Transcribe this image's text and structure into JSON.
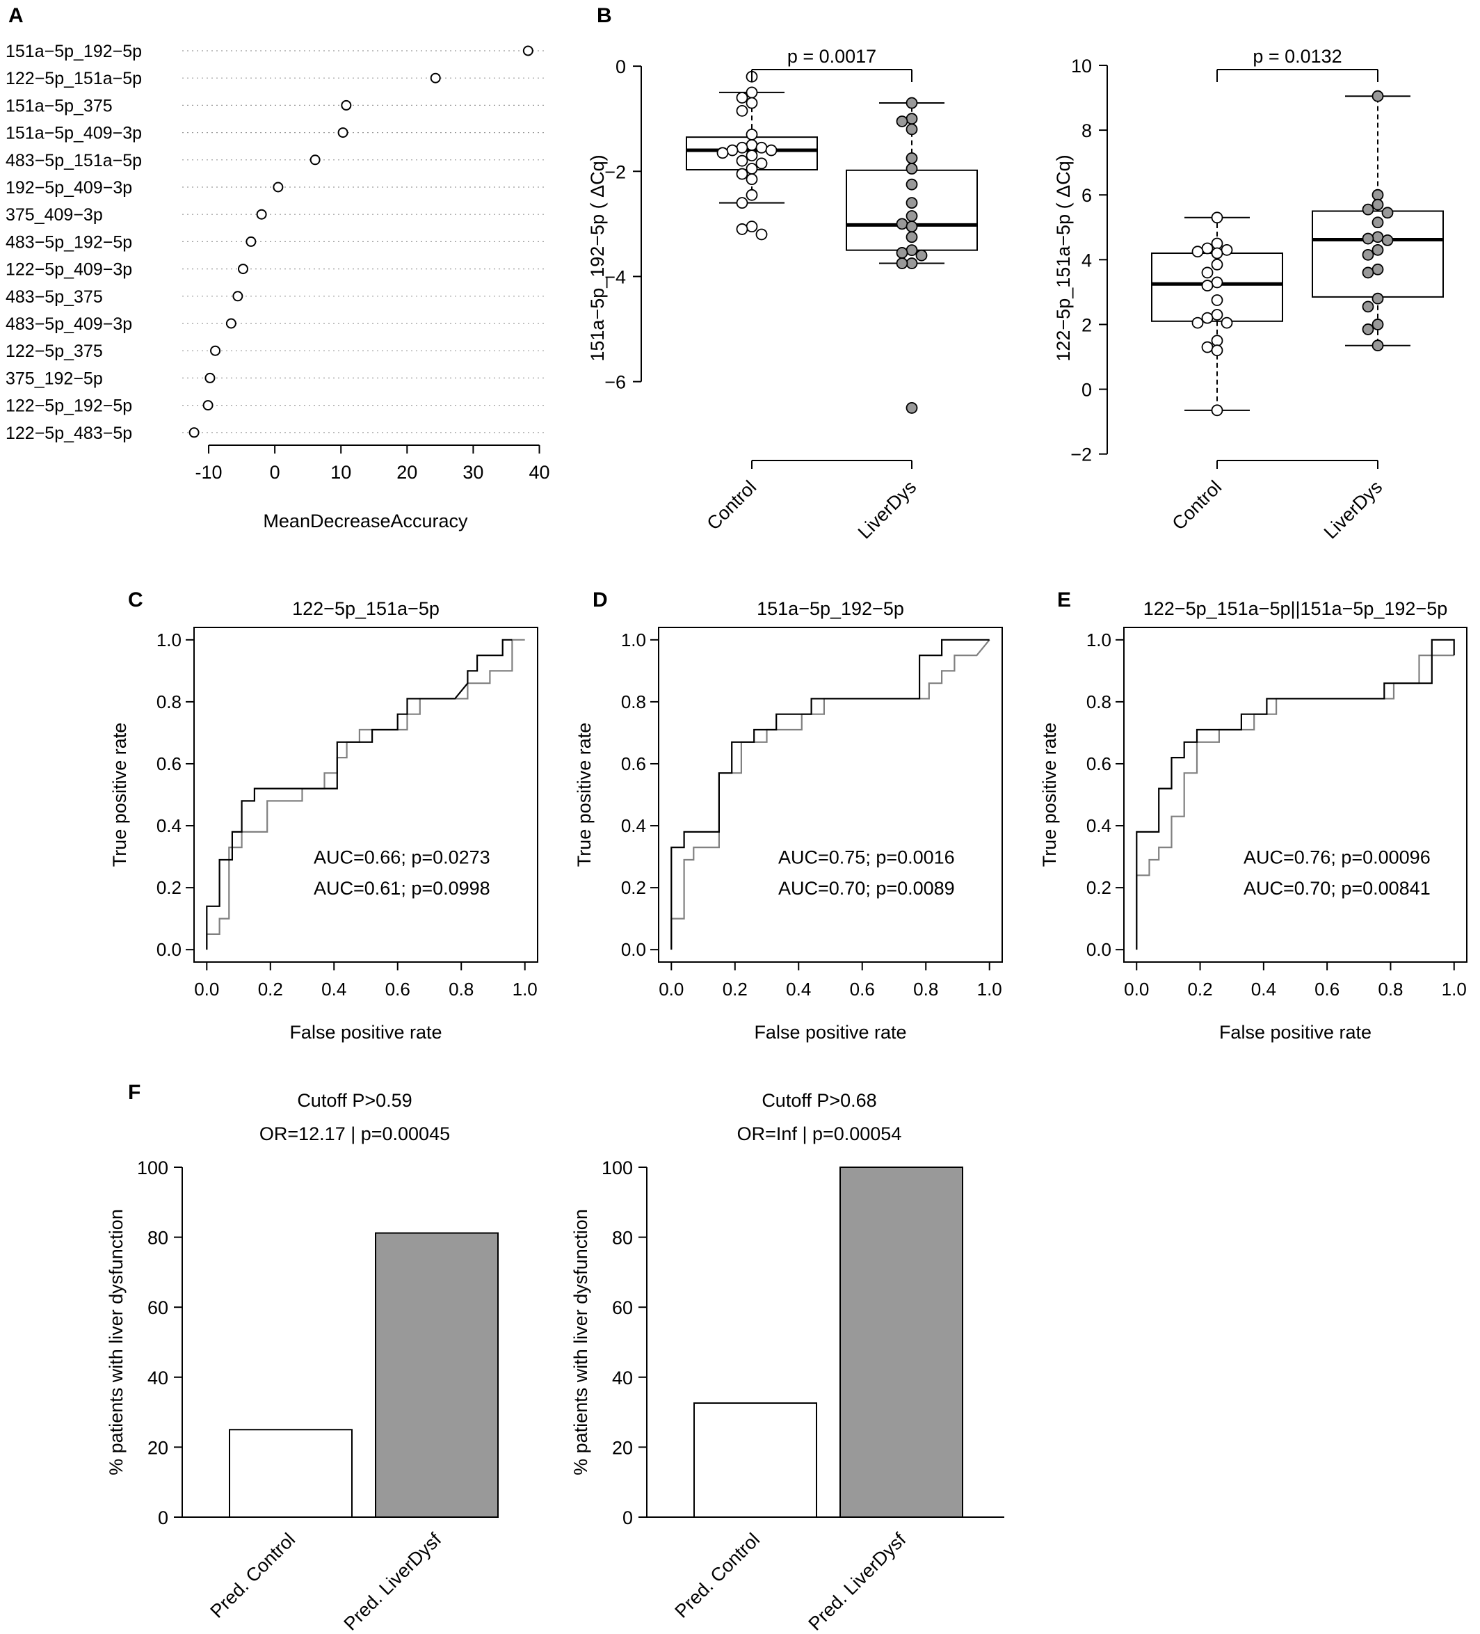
{
  "panel_labels": [
    "A",
    "B",
    "C",
    "D",
    "E",
    "F"
  ],
  "colors": {
    "black": "#000000",
    "gray": "#808080",
    "bar_fill": "#999999",
    "point_gray": "#999999"
  },
  "chart_data": [
    {
      "panel": "A",
      "type": "scatter",
      "subtype": "dotchart",
      "xlabel": "MeanDecreaseAccuracy",
      "xlim": [
        -14,
        41
      ],
      "xticks": [
        -10,
        0,
        10,
        20,
        30,
        40
      ],
      "categories": [
        "151a−5p_192−5p",
        "122−5p_151a−5p",
        "151a−5p_375",
        "151a−5p_409−3p",
        "483−5p_151a−5p",
        "192−5p_409−3p",
        "375_409−3p",
        "483−5p_192−5p",
        "122−5p_409−3p",
        "483−5p_375",
        "483−5p_409−3p",
        "122−5p_375",
        "375_192−5p",
        "122−5p_192−5p",
        "122−5p_483−5p"
      ],
      "values": [
        38.3,
        24.3,
        10.8,
        10.3,
        6.1,
        0.5,
        -2.0,
        -3.6,
        -4.8,
        -5.6,
        -6.6,
        -9.0,
        -9.8,
        -10.1,
        -12.2
      ]
    },
    {
      "panel": "B",
      "type": "box",
      "ylabel": "151a−5p_192−5p  ( ΔCq)",
      "ylim": [
        -7.5,
        0.2
      ],
      "yticks": [
        -6,
        -4,
        -2,
        0
      ],
      "categories": [
        "Control",
        "LiverDys"
      ],
      "pvalue_label": "p = 0.0017",
      "boxes": [
        {
          "category": "Control",
          "whisker_low": -2.6,
          "q1": -1.97,
          "median": -1.6,
          "q3": -1.35,
          "whisker_high": -0.5
        },
        {
          "category": "LiverDys",
          "whisker_low": -3.75,
          "q1": -3.5,
          "median": -3.02,
          "q3": -1.98,
          "whisker_high": -0.7
        }
      ],
      "points": [
        {
          "category": "Control",
          "y": [
            -0.2,
            -0.5,
            -0.6,
            -0.7,
            -0.85,
            -1.3,
            -1.5,
            -1.55,
            -1.55,
            -1.6,
            -1.6,
            -1.65,
            -1.7,
            -1.8,
            -1.85,
            -1.95,
            -2.05,
            -2.15,
            -2.45,
            -2.6,
            -3.05,
            -3.1,
            -3.2
          ]
        },
        {
          "category": "LiverDys",
          "y": [
            -0.7,
            -1.0,
            -1.05,
            -1.2,
            -1.75,
            -1.95,
            -2.25,
            -2.6,
            -2.85,
            -3.0,
            -3.05,
            -3.25,
            -3.5,
            -3.55,
            -3.6,
            -3.75,
            -3.75,
            -6.5
          ]
        }
      ]
    },
    {
      "panel": "B2",
      "type": "box",
      "ylabel": "122−5p_151a−5p  ( ΔCq)",
      "ylim": [
        -2.2,
        10.3
      ],
      "yticks": [
        -2,
        0,
        2,
        4,
        6,
        8,
        10
      ],
      "categories": [
        "Control",
        "LiverDys"
      ],
      "pvalue_label": "p = 0.0132",
      "boxes": [
        {
          "category": "Control",
          "whisker_low": -0.65,
          "q1": 2.1,
          "median": 3.25,
          "q3": 4.2,
          "whisker_high": 5.3
        },
        {
          "category": "LiverDys",
          "whisker_low": 1.35,
          "q1": 2.85,
          "median": 4.62,
          "q3": 5.5,
          "whisker_high": 9.05
        }
      ],
      "points": [
        {
          "category": "Control",
          "y": [
            5.3,
            4.5,
            4.35,
            4.3,
            4.25,
            4.2,
            3.85,
            3.6,
            3.3,
            3.2,
            2.75,
            2.3,
            2.2,
            2.05,
            2.05,
            1.5,
            1.3,
            1.2,
            -0.65
          ]
        },
        {
          "category": "LiverDys",
          "y": [
            9.05,
            6.0,
            5.7,
            5.55,
            5.45,
            5.15,
            4.7,
            4.65,
            4.6,
            4.3,
            4.15,
            3.7,
            3.6,
            2.8,
            2.55,
            2.0,
            1.85,
            1.35
          ]
        }
      ]
    },
    {
      "panel": "C",
      "type": "line",
      "subtype": "roc",
      "title": "122−5p_151a−5p",
      "xlabel": "False positive rate",
      "ylabel": "True positive rate",
      "xlim": [
        -0.04,
        1.04
      ],
      "ylim": [
        -0.04,
        1.04
      ],
      "ticks": [
        0.0,
        0.2,
        0.4,
        0.6,
        0.8,
        1.0
      ],
      "series": [
        {
          "color": "#000000",
          "label": "AUC=0.66; p=0.0273",
          "x": [
            0,
            0,
            0.04,
            0.04,
            0.08,
            0.08,
            0.11,
            0.11,
            0.15,
            0.15,
            0.41,
            0.41,
            0.52,
            0.52,
            0.6,
            0.6,
            0.63,
            0.63,
            0.78,
            0.82,
            0.82,
            0.85,
            0.85,
            0.93,
            0.93,
            0.96
          ],
          "y": [
            0,
            0.14,
            0.14,
            0.29,
            0.29,
            0.38,
            0.38,
            0.48,
            0.48,
            0.52,
            0.52,
            0.67,
            0.67,
            0.71,
            0.71,
            0.76,
            0.76,
            0.81,
            0.81,
            0.86,
            0.9,
            0.9,
            0.95,
            0.95,
            1.0,
            1.0
          ]
        },
        {
          "color": "#808080",
          "label": "AUC=0.61; p=0.0998",
          "x": [
            0,
            0,
            0.04,
            0.04,
            0.07,
            0.07,
            0.11,
            0.11,
            0.19,
            0.19,
            0.3,
            0.3,
            0.37,
            0.37,
            0.41,
            0.41,
            0.44,
            0.44,
            0.48,
            0.48,
            0.63,
            0.63,
            0.67,
            0.67,
            0.82,
            0.82,
            0.89,
            0.89,
            0.96,
            0.96,
            1.0
          ],
          "y": [
            0,
            0.05,
            0.05,
            0.1,
            0.1,
            0.33,
            0.33,
            0.38,
            0.38,
            0.48,
            0.48,
            0.52,
            0.52,
            0.57,
            0.57,
            0.62,
            0.62,
            0.67,
            0.67,
            0.71,
            0.71,
            0.76,
            0.76,
            0.81,
            0.81,
            0.86,
            0.86,
            0.9,
            0.9,
            1.0,
            1.0
          ]
        }
      ]
    },
    {
      "panel": "D",
      "type": "line",
      "subtype": "roc",
      "title": "151a−5p_192−5p",
      "xlabel": "False positive rate",
      "ylabel": "True positive rate",
      "xlim": [
        -0.04,
        1.04
      ],
      "ylim": [
        -0.04,
        1.04
      ],
      "ticks": [
        0.0,
        0.2,
        0.4,
        0.6,
        0.8,
        1.0
      ],
      "series": [
        {
          "color": "#000000",
          "label": "AUC=0.75; p=0.0016",
          "x": [
            0,
            0,
            0.04,
            0.04,
            0.15,
            0.15,
            0.19,
            0.19,
            0.26,
            0.26,
            0.33,
            0.33,
            0.44,
            0.44,
            0.52,
            0.52,
            0.78,
            0.78,
            0.85,
            0.85,
            0.89,
            0.89,
            1.0
          ],
          "y": [
            0,
            0.33,
            0.33,
            0.38,
            0.38,
            0.57,
            0.57,
            0.67,
            0.67,
            0.71,
            0.71,
            0.76,
            0.76,
            0.81,
            0.81,
            0.81,
            0.81,
            0.95,
            0.95,
            1.0,
            1.0,
            1.0,
            1.0
          ]
        },
        {
          "color": "#808080",
          "label": "AUC=0.70; p=0.0089",
          "x": [
            0,
            0,
            0.04,
            0.04,
            0.07,
            0.07,
            0.15,
            0.15,
            0.22,
            0.22,
            0.3,
            0.3,
            0.41,
            0.41,
            0.48,
            0.48,
            0.52,
            0.52,
            0.81,
            0.81,
            0.85,
            0.85,
            0.89,
            0.89,
            0.96,
            0.96,
            1.0
          ],
          "y": [
            0,
            0.1,
            0.1,
            0.29,
            0.29,
            0.33,
            0.33,
            0.57,
            0.57,
            0.67,
            0.67,
            0.71,
            0.71,
            0.76,
            0.76,
            0.81,
            0.81,
            0.81,
            0.81,
            0.86,
            0.86,
            0.9,
            0.9,
            0.95,
            0.95,
            0.95,
            1.0
          ]
        }
      ]
    },
    {
      "panel": "E",
      "type": "line",
      "subtype": "roc",
      "title": "122−5p_151a−5p||151a−5p_192−5p",
      "xlabel": "False positive rate",
      "ylabel": "True positive rate",
      "xlim": [
        -0.04,
        1.04
      ],
      "ylim": [
        -0.04,
        1.04
      ],
      "ticks": [
        0.0,
        0.2,
        0.4,
        0.6,
        0.8,
        1.0
      ],
      "series": [
        {
          "color": "#000000",
          "label": "AUC=0.76; p=0.00096",
          "x": [
            0,
            0,
            0.07,
            0.07,
            0.11,
            0.11,
            0.15,
            0.15,
            0.19,
            0.19,
            0.26,
            0.26,
            0.33,
            0.33,
            0.37,
            0.37,
            0.41,
            0.41,
            0.48,
            0.48,
            0.78,
            0.78,
            0.89,
            0.89,
            0.93,
            0.93,
            1.0,
            1.0
          ],
          "y": [
            0,
            0.38,
            0.38,
            0.52,
            0.52,
            0.62,
            0.62,
            0.67,
            0.67,
            0.71,
            0.71,
            0.71,
            0.71,
            0.76,
            0.76,
            0.76,
            0.76,
            0.81,
            0.81,
            0.81,
            0.81,
            0.86,
            0.86,
            0.86,
            0.86,
            1.0,
            1.0,
            0.95
          ]
        },
        {
          "color": "#808080",
          "label": "AUC=0.70; p=0.00841",
          "x": [
            0,
            0,
            0.04,
            0.04,
            0.07,
            0.07,
            0.11,
            0.11,
            0.15,
            0.15,
            0.19,
            0.19,
            0.26,
            0.26,
            0.37,
            0.37,
            0.44,
            0.44,
            0.52,
            0.52,
            0.81,
            0.81,
            0.89,
            0.89,
            0.96,
            0.96,
            1.0
          ],
          "y": [
            0,
            0.24,
            0.24,
            0.29,
            0.29,
            0.33,
            0.33,
            0.43,
            0.43,
            0.57,
            0.57,
            0.67,
            0.67,
            0.71,
            0.71,
            0.76,
            0.76,
            0.81,
            0.81,
            0.81,
            0.81,
            0.86,
            0.86,
            0.95,
            0.95,
            0.95,
            0.95
          ]
        }
      ]
    },
    {
      "panel": "F",
      "type": "bar",
      "title_lines": [
        "Cutoff P>0.59",
        "OR=12.17 | p=0.00045"
      ],
      "ylabel": "% patients with liver dysfunction",
      "ylim": [
        0,
        100
      ],
      "yticks": [
        0,
        20,
        40,
        60,
        80,
        100
      ],
      "categories": [
        "Pred. Control",
        "Pred. LiverDysf"
      ],
      "values": [
        25,
        81.2
      ],
      "fills": [
        "#ffffff",
        "#999999"
      ]
    },
    {
      "panel": "F2",
      "type": "bar",
      "title_lines": [
        "Cutoff P>0.68",
        "OR=Inf | p=0.00054"
      ],
      "ylabel": "% patients with liver dysfunction",
      "ylim": [
        0,
        100
      ],
      "yticks": [
        0,
        20,
        40,
        60,
        80,
        100
      ],
      "categories": [
        "Pred. Control",
        "Pred. LiverDysf"
      ],
      "values": [
        32.6,
        100
      ],
      "fills": [
        "#ffffff",
        "#999999"
      ]
    }
  ]
}
